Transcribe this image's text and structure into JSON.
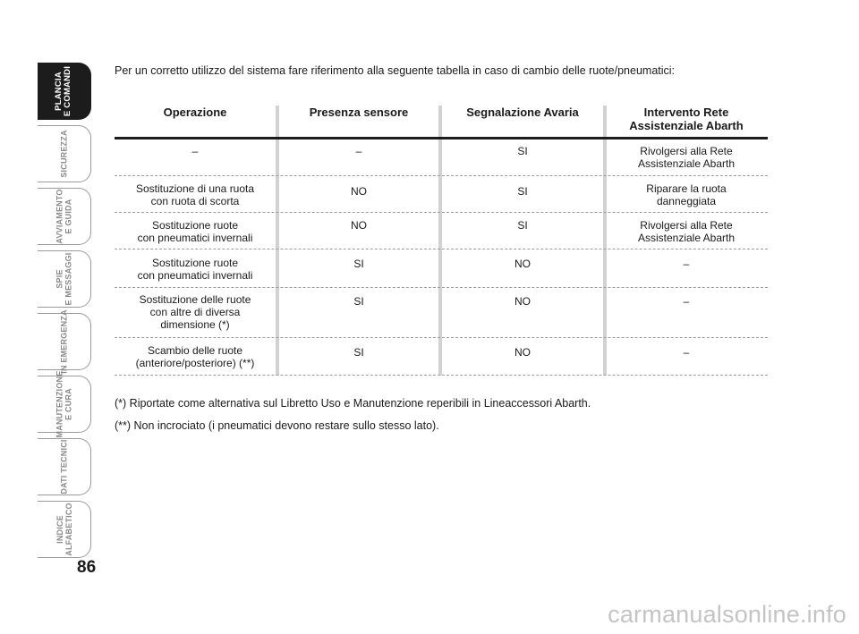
{
  "sidebar": {
    "tabs": [
      {
        "label": "PLANCIA\nE COMANDI",
        "active": true
      },
      {
        "label": "SICUREZZA",
        "active": false
      },
      {
        "label": "AVVIAMENTO\nE GUIDA",
        "active": false
      },
      {
        "label": "SPIE\nE MESSAGGI",
        "active": false
      },
      {
        "label": "IN EMERGENZA",
        "active": false
      },
      {
        "label": "MANUTENZIONE\nE CURA",
        "active": false
      },
      {
        "label": "DATI TECNICI",
        "active": false
      },
      {
        "label": "INDICE\nALFABETICO",
        "active": false
      }
    ],
    "page_number": "86"
  },
  "intro": "Per un corretto utilizzo del sistema fare riferimento alla seguente tabella in caso di cambio delle ruote/pneumatici:",
  "table": {
    "headers": [
      "Operazione",
      "Presenza sensore",
      "Segnalazione Avaria",
      "Intervento Rete\nAssistenziale Abarth"
    ],
    "rows": [
      [
        "–",
        "–",
        "SI",
        "Rivolgersi alla Rete\nAssistenziale Abarth"
      ],
      [
        "Sostituzione di una ruota\ncon ruota di scorta",
        "NO",
        "SI",
        "Riparare la ruota\ndanneggiata"
      ],
      [
        "Sostituzione ruote\ncon pneumatici invernali",
        "NO",
        "SI",
        "Rivolgersi alla Rete\nAssistenziale Abarth"
      ],
      [
        "Sostituzione ruote\ncon pneumatici invernali",
        "SI",
        "NO",
        "–"
      ],
      [
        "Sostituzione delle ruote\ncon altre di diversa\ndimensione (*)",
        "SI",
        "NO",
        "–"
      ],
      [
        "Scambio delle ruote\n(anteriore/posteriore) (**)",
        "SI",
        "NO",
        "–"
      ]
    ]
  },
  "notes": [
    "(*) Riportate come alternativa sul Libretto Uso e Manutenzione reperibili in Lineaccessori Abarth.",
    "(**) Non incrociato (i pneumatici devono restare sullo stesso lato)."
  ],
  "watermark": "carmanualsonline.info"
}
